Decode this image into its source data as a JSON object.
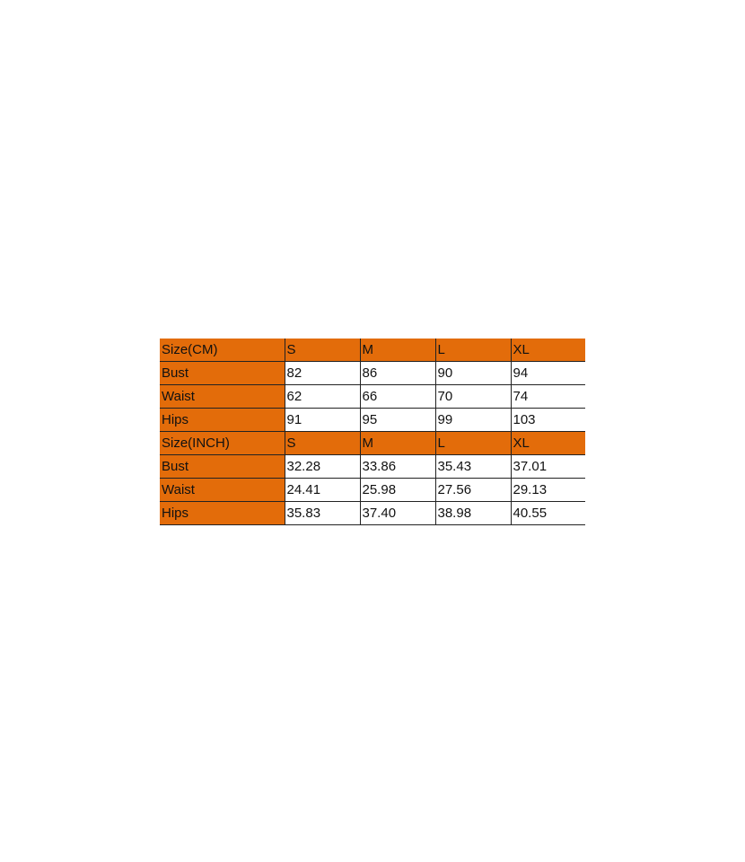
{
  "colors": {
    "header_fill": "#E36C0A"
  },
  "table": {
    "rows": [
      [
        "Size(CM)",
        "S",
        "M",
        "L",
        "XL"
      ],
      [
        "Bust",
        "82",
        "86",
        "90",
        "94"
      ],
      [
        "Waist",
        "62",
        "66",
        "70",
        "74"
      ],
      [
        "Hips",
        "91",
        "95",
        "99",
        "103"
      ],
      [
        "Size(INCH)",
        "S",
        "M",
        "L",
        "XL"
      ],
      [
        "Bust",
        "32.28",
        "33.86",
        "35.43",
        "37.01"
      ],
      [
        "Waist",
        "24.41",
        "25.98",
        "27.56",
        "29.13"
      ],
      [
        "Hips",
        "35.83",
        "37.40",
        "38.98",
        "40.55"
      ]
    ],
    "header_rows": [
      0,
      4
    ]
  }
}
